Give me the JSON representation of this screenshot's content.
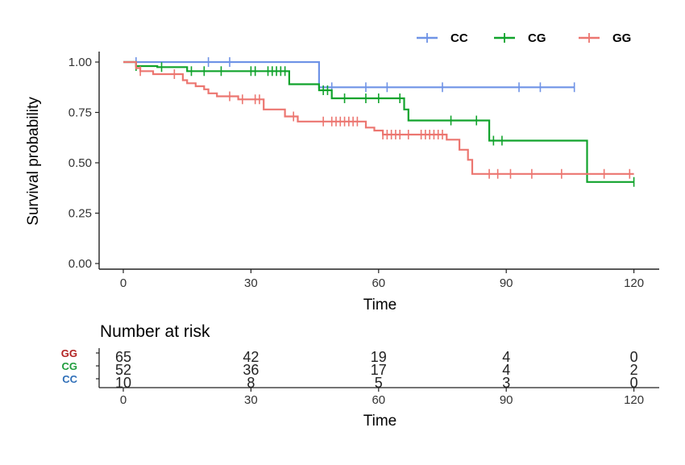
{
  "chart_data": {
    "type": "line",
    "subtype": "kaplan-meier",
    "xlabel": "Time",
    "ylabel": "Survival probability",
    "xlim": [
      -5,
      126
    ],
    "ylim": [
      -0.03,
      1.04
    ],
    "xticks": [
      0,
      30,
      60,
      90,
      120
    ],
    "yticks": [
      0.0,
      0.25,
      0.5,
      0.75,
      1.0
    ],
    "ytick_labels": [
      "0.00",
      "0.25",
      "0.50",
      "0.75",
      "1.00"
    ],
    "grid": false,
    "legend_position": "top-right",
    "series": [
      {
        "name": "CC",
        "color": "#6f93e6",
        "steps": [
          [
            0,
            1.0
          ],
          [
            46,
            1.0
          ],
          [
            46,
            0.875
          ],
          [
            106,
            0.875
          ]
        ],
        "censor_x": [
          3,
          20,
          25,
          49,
          57,
          62,
          75,
          93,
          98,
          106
        ]
      },
      {
        "name": "CG",
        "color": "#11a32c",
        "steps": [
          [
            0,
            1.0
          ],
          [
            3,
            1.0
          ],
          [
            3,
            0.98
          ],
          [
            8,
            0.98
          ],
          [
            8,
            0.975
          ],
          [
            15,
            0.975
          ],
          [
            15,
            0.955
          ],
          [
            39,
            0.955
          ],
          [
            39,
            0.89
          ],
          [
            46,
            0.89
          ],
          [
            46,
            0.86
          ],
          [
            49,
            0.86
          ],
          [
            49,
            0.82
          ],
          [
            66,
            0.82
          ],
          [
            66,
            0.765
          ],
          [
            67,
            0.765
          ],
          [
            67,
            0.71
          ],
          [
            86,
            0.71
          ],
          [
            86,
            0.61
          ],
          [
            109,
            0.61
          ],
          [
            109,
            0.405
          ],
          [
            120,
            0.405
          ]
        ],
        "censor_x": [
          3,
          9,
          16,
          19,
          23,
          30,
          31,
          34,
          35,
          36,
          37,
          38,
          47,
          48,
          52,
          57,
          60,
          65,
          77,
          83,
          87,
          89,
          120
        ]
      },
      {
        "name": "GG",
        "color": "#ec7670",
        "steps": [
          [
            0,
            1.0
          ],
          [
            3,
            1.0
          ],
          [
            3,
            0.97
          ],
          [
            4,
            0.97
          ],
          [
            4,
            0.955
          ],
          [
            7,
            0.955
          ],
          [
            7,
            0.94
          ],
          [
            14,
            0.94
          ],
          [
            14,
            0.91
          ],
          [
            15,
            0.91
          ],
          [
            15,
            0.895
          ],
          [
            17,
            0.895
          ],
          [
            17,
            0.88
          ],
          [
            19,
            0.88
          ],
          [
            19,
            0.865
          ],
          [
            20,
            0.865
          ],
          [
            20,
            0.845
          ],
          [
            22,
            0.845
          ],
          [
            22,
            0.83
          ],
          [
            27,
            0.83
          ],
          [
            27,
            0.815
          ],
          [
            33,
            0.815
          ],
          [
            33,
            0.765
          ],
          [
            38,
            0.765
          ],
          [
            38,
            0.73
          ],
          [
            41,
            0.73
          ],
          [
            41,
            0.705
          ],
          [
            57,
            0.705
          ],
          [
            57,
            0.675
          ],
          [
            59,
            0.675
          ],
          [
            59,
            0.66
          ],
          [
            61,
            0.66
          ],
          [
            61,
            0.64
          ],
          [
            76,
            0.64
          ],
          [
            76,
            0.615
          ],
          [
            79,
            0.615
          ],
          [
            79,
            0.565
          ],
          [
            81,
            0.565
          ],
          [
            81,
            0.515
          ],
          [
            82,
            0.515
          ],
          [
            82,
            0.445
          ],
          [
            120,
            0.445
          ]
        ],
        "censor_x": [
          4,
          12,
          25,
          28,
          31,
          32,
          40,
          47,
          49,
          50,
          51,
          52,
          53,
          54,
          55,
          61,
          62,
          63,
          64,
          65,
          67,
          70,
          71,
          72,
          73,
          74,
          75,
          86,
          88,
          91,
          96,
          103,
          113,
          119
        ]
      }
    ],
    "risk_table": {
      "title": "Number at risk",
      "xlabel": "Time",
      "rows": [
        {
          "name": "GG",
          "color": "#b22222",
          "values": [
            "65",
            "42",
            "19",
            "4",
            "0"
          ]
        },
        {
          "name": "CG",
          "color": "#1e9c3c",
          "values": [
            "52",
            "36",
            "17",
            "4",
            "2"
          ]
        },
        {
          "name": "CC",
          "color": "#2f6fb8",
          "values": [
            "10",
            "8",
            "5",
            "3",
            "0"
          ]
        }
      ]
    }
  }
}
